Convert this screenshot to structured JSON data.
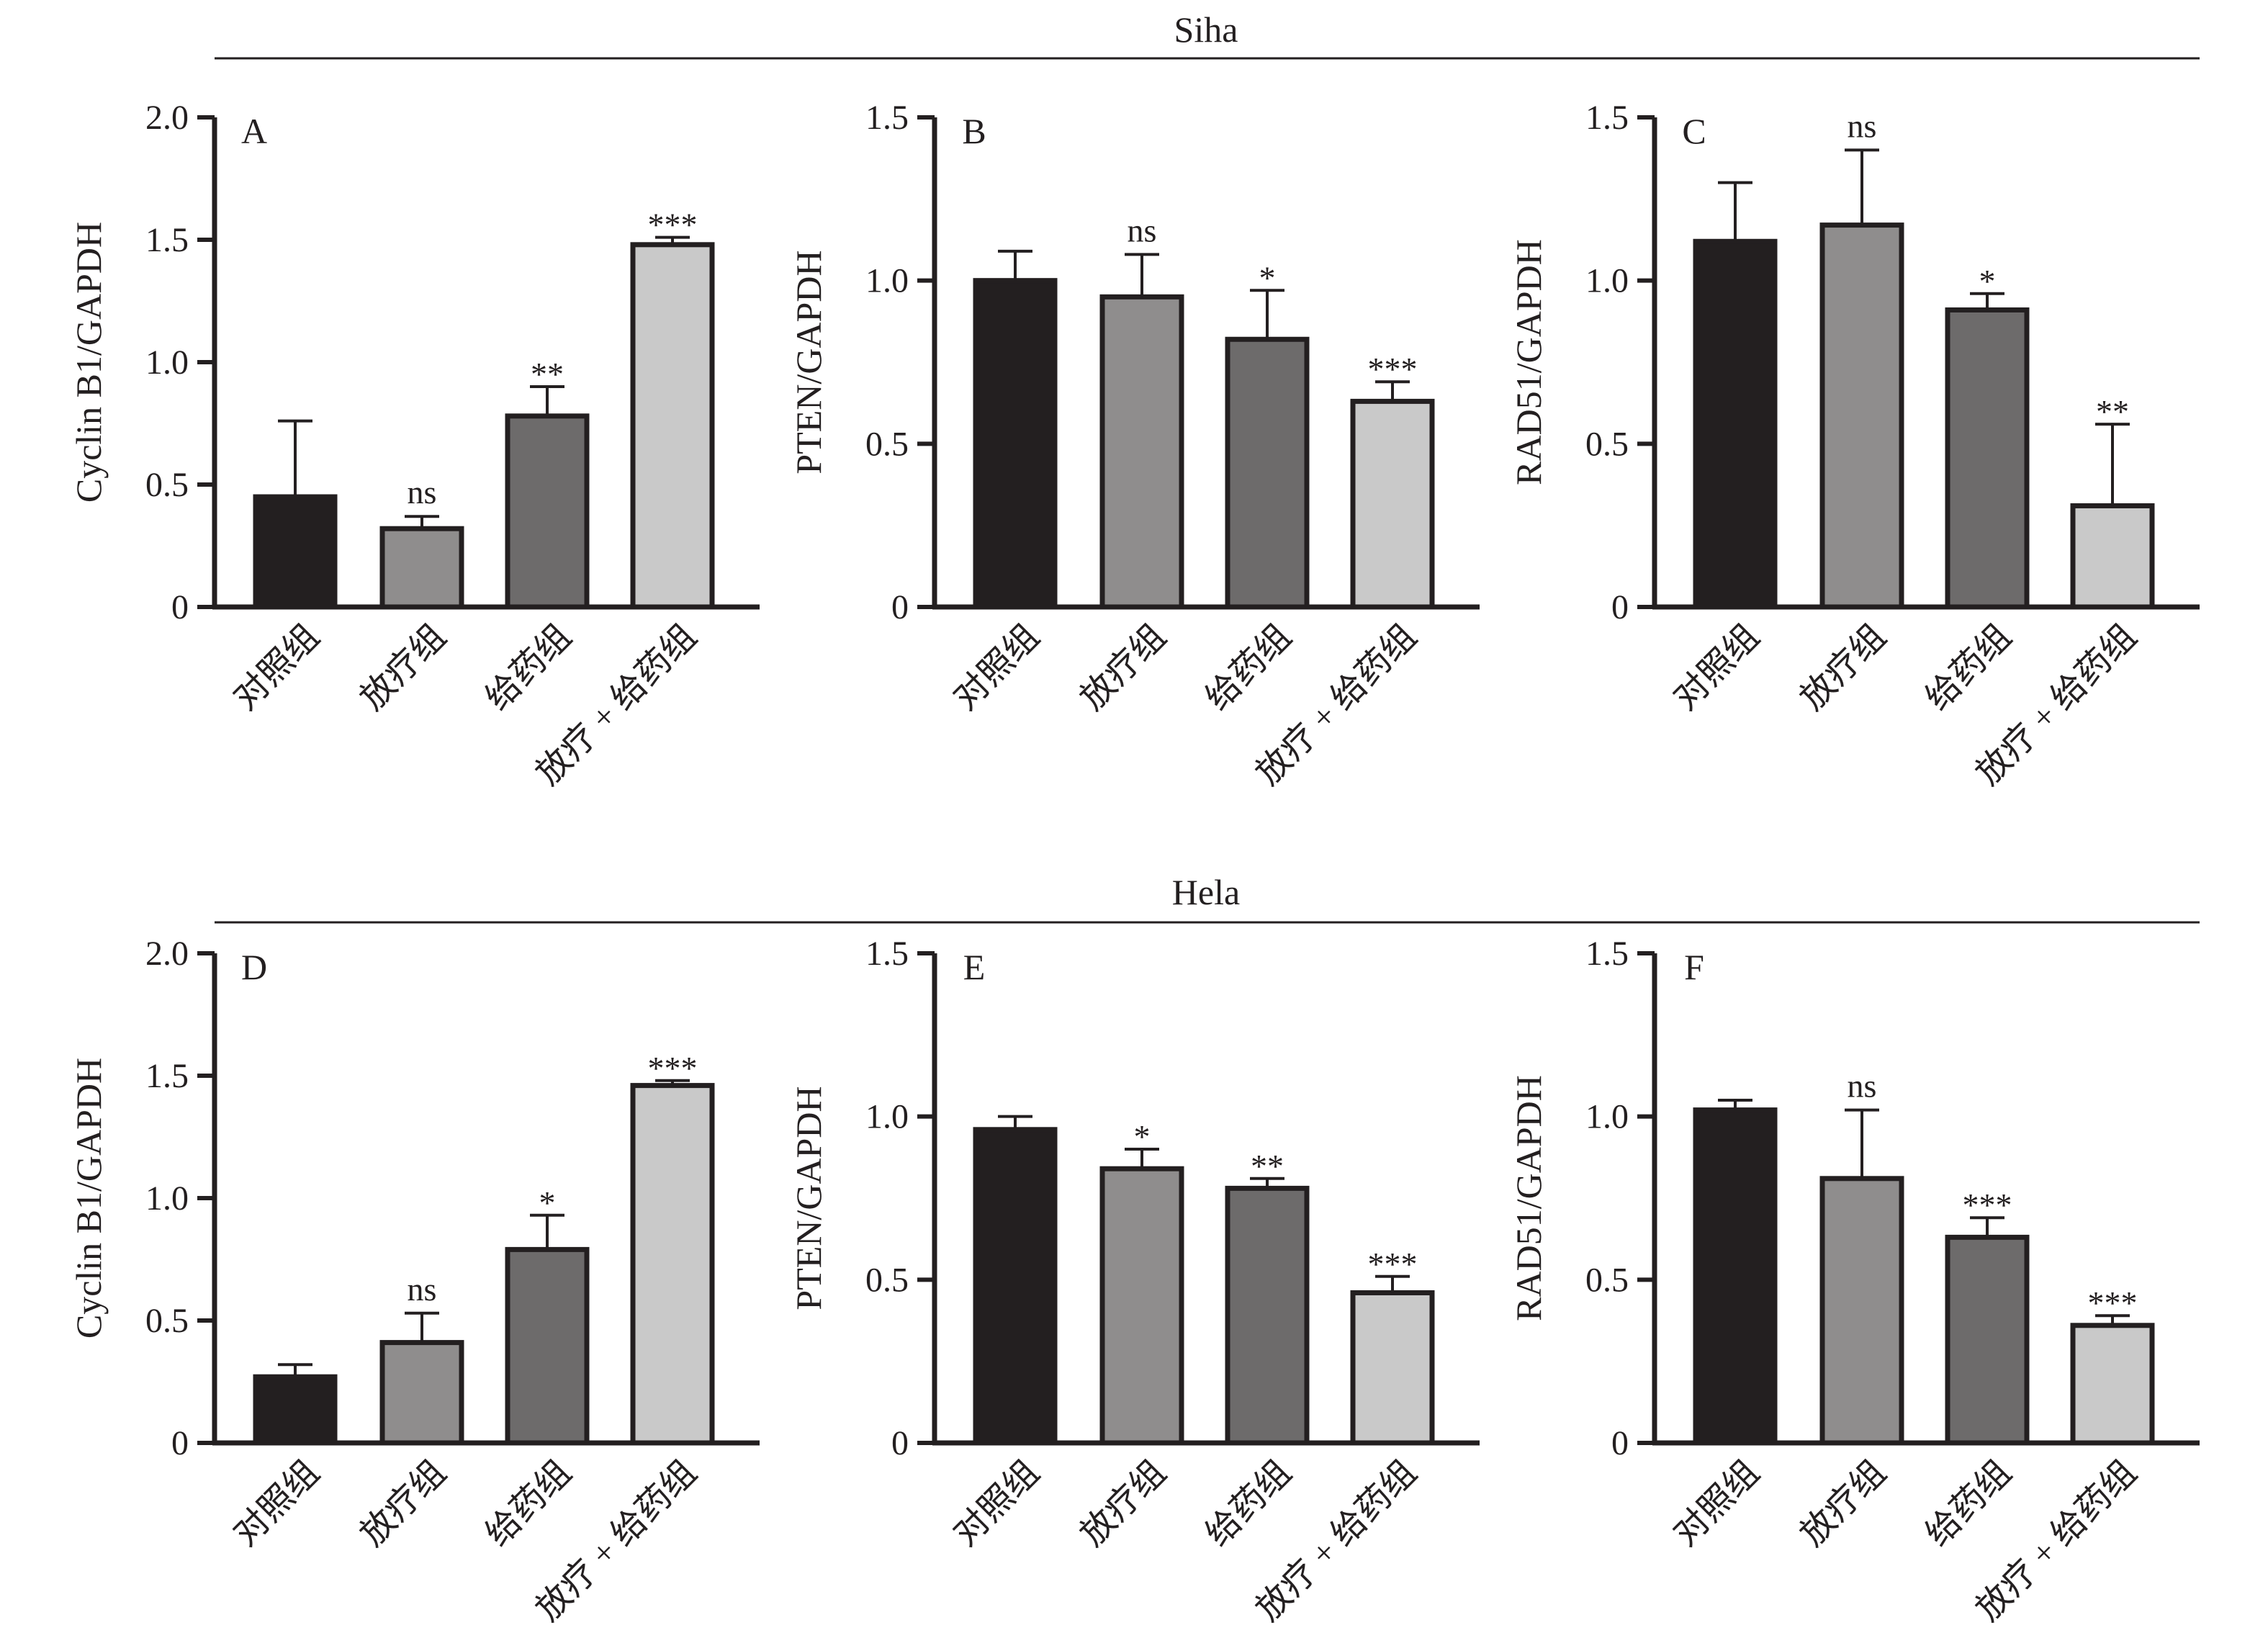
{
  "rows": [
    {
      "title": "Siha"
    },
    {
      "title": "Hela"
    }
  ],
  "colors": {
    "ink": "#231f20",
    "bars": [
      "#231f20",
      "#8f8d8d",
      "#6d6b6b",
      "#c9c9c9"
    ]
  },
  "chart_data": [
    {
      "type": "bar",
      "panel": "A",
      "row": "Siha",
      "categories": [
        "对照组",
        "放疗组",
        "给药组",
        "放疗 + 给药组"
      ],
      "values": [
        0.45,
        0.32,
        0.78,
        1.48
      ],
      "error": [
        0.31,
        0.05,
        0.12,
        0.03
      ],
      "significance": [
        "",
        "ns",
        "**",
        "***"
      ],
      "ylabel": "Cyclin B1/GAPDH",
      "xlabel": "",
      "ylim": [
        0,
        2.0
      ],
      "yticks": [
        0,
        0.5,
        1.0,
        1.5,
        2.0
      ],
      "ytick_labels": [
        "0",
        "0.5",
        "1.0",
        "1.5",
        "2.0"
      ],
      "grid": false
    },
    {
      "type": "bar",
      "panel": "B",
      "row": "Siha",
      "categories": [
        "对照组",
        "放疗组",
        "给药组",
        "放疗 + 给药组"
      ],
      "values": [
        1.0,
        0.95,
        0.82,
        0.63
      ],
      "error": [
        0.09,
        0.13,
        0.15,
        0.06
      ],
      "significance": [
        "",
        "ns",
        "*",
        "***"
      ],
      "ylabel": "PTEN/GAPDH",
      "xlabel": "",
      "ylim": [
        0,
        1.5
      ],
      "yticks": [
        0,
        0.5,
        1.0,
        1.5
      ],
      "ytick_labels": [
        "0",
        "0.5",
        "1.0",
        "1.5"
      ],
      "grid": false
    },
    {
      "type": "bar",
      "panel": "C",
      "row": "Siha",
      "categories": [
        "对照组",
        "放疗组",
        "给药组",
        "放疗 + 给药组"
      ],
      "values": [
        1.12,
        1.17,
        0.91,
        0.31
      ],
      "error": [
        0.18,
        0.23,
        0.05,
        0.25
      ],
      "significance": [
        "",
        "ns",
        "*",
        "**"
      ],
      "ylabel": "RAD51/GAPDH",
      "xlabel": "",
      "ylim": [
        0,
        1.5
      ],
      "yticks": [
        0,
        0.5,
        1.0,
        1.5
      ],
      "ytick_labels": [
        "0",
        "0.5",
        "1.0",
        "1.5"
      ],
      "grid": false
    },
    {
      "type": "bar",
      "panel": "D",
      "row": "Hela",
      "categories": [
        "对照组",
        "放疗组",
        "给药组",
        "放疗 + 给药组"
      ],
      "values": [
        0.27,
        0.41,
        0.79,
        1.46
      ],
      "error": [
        0.05,
        0.12,
        0.14,
        0.02
      ],
      "significance": [
        "",
        "ns",
        "*",
        "***"
      ],
      "ylabel": "Cyclin B1/GAPDH",
      "xlabel": "",
      "ylim": [
        0,
        2.0
      ],
      "yticks": [
        0,
        0.5,
        1.0,
        1.5,
        2.0
      ],
      "ytick_labels": [
        "0",
        "0.5",
        "1.0",
        "1.5",
        "2.0"
      ],
      "grid": false
    },
    {
      "type": "bar",
      "panel": "E",
      "row": "Hela",
      "categories": [
        "对照组",
        "放疗组",
        "给药组",
        "放疗 + 给药组"
      ],
      "values": [
        0.96,
        0.84,
        0.78,
        0.46
      ],
      "error": [
        0.04,
        0.06,
        0.03,
        0.05
      ],
      "significance": [
        "",
        "*",
        "**",
        "***"
      ],
      "ylabel": "PTEN/GAPDH",
      "xlabel": "",
      "ylim": [
        0,
        1.5
      ],
      "yticks": [
        0,
        0.5,
        1.0,
        1.5
      ],
      "ytick_labels": [
        "0",
        "0.5",
        "1.0",
        "1.5"
      ],
      "grid": false
    },
    {
      "type": "bar",
      "panel": "F",
      "row": "Hela",
      "categories": [
        "对照组",
        "放疗组",
        "给药组",
        "放疗 + 给药组"
      ],
      "values": [
        1.02,
        0.81,
        0.63,
        0.36
      ],
      "error": [
        0.03,
        0.21,
        0.06,
        0.03
      ],
      "significance": [
        "",
        "ns",
        "***",
        "***"
      ],
      "ylabel": "RAD51/GAPDH",
      "xlabel": "",
      "ylim": [
        0,
        1.5
      ],
      "yticks": [
        0,
        0.5,
        1.0,
        1.5
      ],
      "ytick_labels": [
        "0",
        "0.5",
        "1.0",
        "1.5"
      ],
      "grid": false
    }
  ]
}
